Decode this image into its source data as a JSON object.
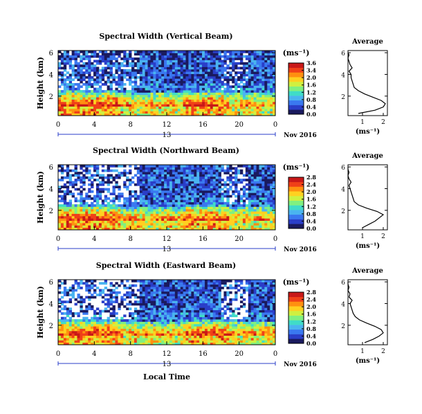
{
  "figure": {
    "xlabel": "Local Time",
    "date_label": "Nov 2016",
    "day_label": "13",
    "x_ticks": [
      "0",
      "4",
      "8",
      "12",
      "16",
      "20",
      "0"
    ],
    "y_label": "Height (km)",
    "y_ticks": [
      "6",
      "4",
      "2"
    ],
    "unit_label": "(ms⁻¹)",
    "avg_title": "Average",
    "avg_y_ticks": [
      "6",
      "4",
      "2"
    ],
    "avg_x_ticks": [
      "1",
      "2"
    ],
    "avg_unit_label": "(ms⁻¹)"
  },
  "colorscale": [
    "#1a1a5e",
    "#2a3ec8",
    "#3a78f0",
    "#4ab4f0",
    "#40dcc8",
    "#80f080",
    "#d0f040",
    "#ffd020",
    "#ff9010",
    "#f04018",
    "#c81818"
  ],
  "chart_data": [
    {
      "type": "heatmap",
      "title": "Spectral Width (Vertical Beam)",
      "xlabel": "",
      "ylabel": "Height (km)",
      "xlim": [
        0,
        24
      ],
      "ylim": [
        0.2,
        6.2
      ],
      "colorbar_label": "(ms⁻¹)",
      "colorbar_ticks": [
        "3.6",
        "3.4",
        "2.0",
        "1.6",
        "1.2",
        "0.8",
        "0.4",
        "0.0"
      ],
      "colorbar_max": 3.6,
      "profile": {
        "title": "Average",
        "xlim": [
          0.3,
          2.2
        ],
        "ylim": [
          0.2,
          6.2
        ],
        "heights": [
          0.4,
          0.7,
          1.0,
          1.3,
          1.6,
          1.9,
          2.2,
          2.5,
          2.8,
          3.1,
          3.4,
          3.7,
          4.0,
          4.3,
          4.6,
          4.9,
          5.2,
          5.5,
          5.8,
          6.0
        ],
        "values": [
          0.8,
          1.6,
          2.0,
          2.1,
          1.9,
          1.5,
          1.1,
          0.8,
          0.6,
          0.55,
          0.5,
          0.45,
          0.45,
          0.35,
          0.5,
          0.4,
          0.35,
          0.3,
          0.35,
          0.3
        ]
      }
    },
    {
      "type": "heatmap",
      "title": "Spectral Width (Northward Beam)",
      "xlabel": "",
      "ylabel": "Height (km)",
      "xlim": [
        0,
        24
      ],
      "ylim": [
        0.2,
        6.2
      ],
      "colorbar_label": "(ms⁻¹)",
      "colorbar_ticks": [
        "2.8",
        "2.4",
        "2.0",
        "1.6",
        "1.2",
        "0.8",
        "0.4",
        "0.0"
      ],
      "colorbar_max": 2.8,
      "profile": {
        "title": "Average",
        "xlim": [
          0.3,
          2.2
        ],
        "ylim": [
          0.2,
          6.2
        ],
        "heights": [
          0.4,
          0.7,
          1.0,
          1.3,
          1.6,
          1.9,
          2.2,
          2.5,
          2.8,
          3.1,
          3.4,
          3.7,
          4.0,
          4.3,
          4.6,
          4.9,
          5.2,
          5.5,
          5.8,
          6.0
        ],
        "values": [
          1.0,
          1.3,
          1.6,
          1.8,
          2.0,
          1.7,
          1.2,
          0.8,
          0.6,
          0.55,
          0.5,
          0.45,
          0.4,
          0.35,
          0.45,
          0.35,
          0.3,
          0.35,
          0.3,
          0.3
        ]
      }
    },
    {
      "type": "heatmap",
      "title": "Spectral Width (Eastward Beam)",
      "xlabel": "Local Time",
      "ylabel": "Height (km)",
      "xlim": [
        0,
        24
      ],
      "ylim": [
        0.2,
        6.2
      ],
      "colorbar_label": "(ms⁻¹)",
      "colorbar_ticks": [
        "2.8",
        "2.4",
        "2.0",
        "1.6",
        "1.2",
        "0.8",
        "0.4",
        "0.0"
      ],
      "colorbar_max": 2.8,
      "profile": {
        "title": "Average",
        "xlim": [
          0.3,
          2.2
        ],
        "ylim": [
          0.2,
          6.2
        ],
        "heights": [
          0.4,
          0.7,
          1.0,
          1.3,
          1.6,
          1.9,
          2.2,
          2.5,
          2.8,
          3.1,
          3.4,
          3.7,
          4.0,
          4.3,
          4.6,
          4.9,
          5.2,
          5.5,
          5.8,
          6.0
        ],
        "values": [
          1.1,
          1.5,
          1.8,
          2.0,
          1.9,
          1.6,
          1.2,
          0.85,
          0.65,
          0.55,
          0.5,
          0.45,
          0.4,
          0.5,
          0.35,
          0.4,
          0.3,
          0.35,
          0.3,
          0.3
        ]
      }
    }
  ]
}
